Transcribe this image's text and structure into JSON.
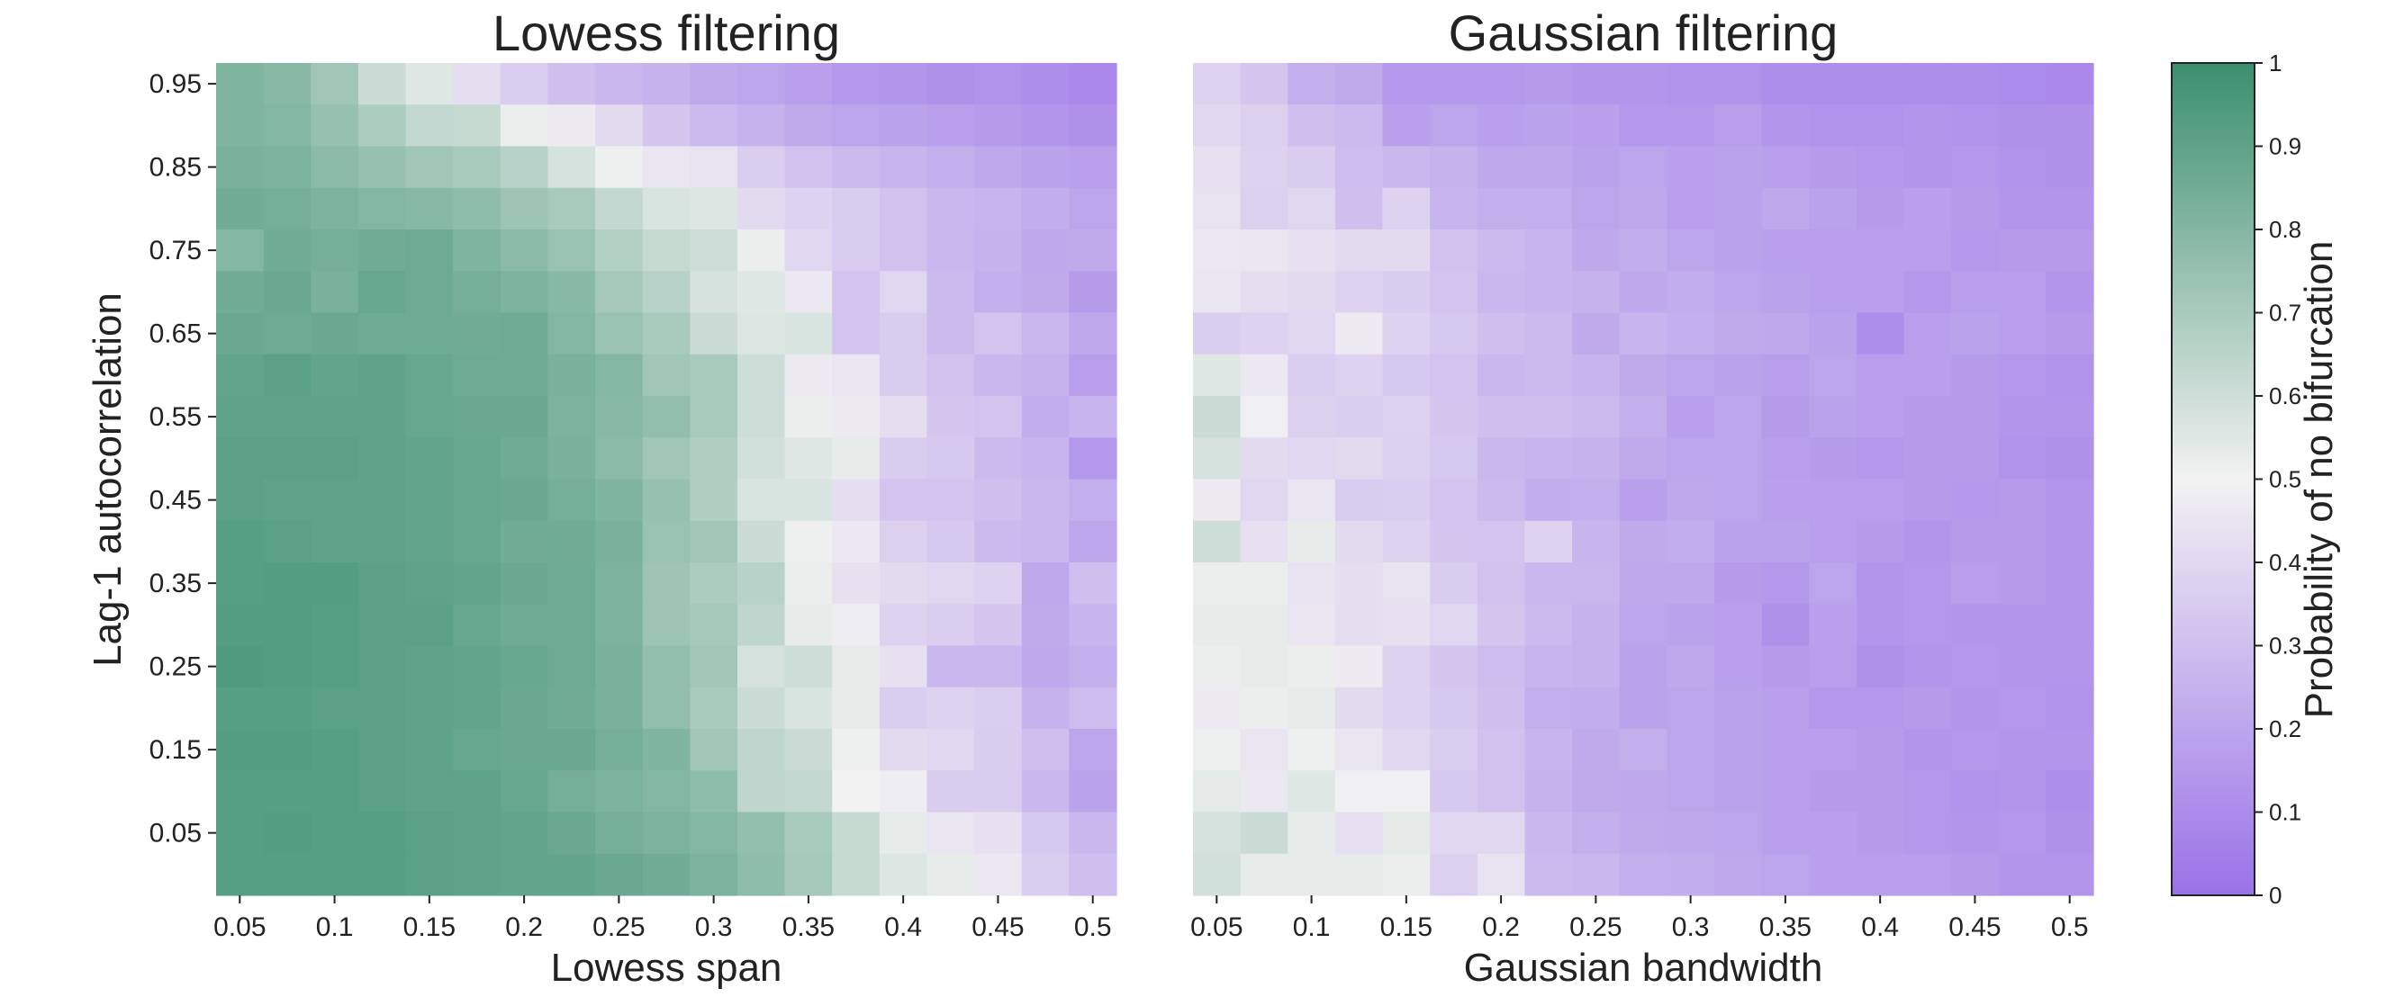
{
  "chart_data": [
    {
      "type": "heatmap",
      "title": "Lowess filtering",
      "xlabel": "Lowess span",
      "ylabel": "Lag-1 autocorrelation",
      "x_ticks": [
        "0.05",
        "0.1",
        "0.15",
        "0.2",
        "0.25",
        "0.3",
        "0.35",
        "0.4",
        "0.45",
        "0.5"
      ],
      "y_ticks": [
        "0.95",
        "0.85",
        "0.75",
        "0.65",
        "0.55",
        "0.45",
        "0.35",
        "0.25",
        "0.15",
        "0.05"
      ],
      "x_values": [
        0.05,
        0.075,
        0.1,
        0.125,
        0.15,
        0.175,
        0.2,
        0.225,
        0.25,
        0.275,
        0.3,
        0.325,
        0.35,
        0.375,
        0.4,
        0.425,
        0.45,
        0.475,
        0.5
      ],
      "y_values": [
        0.95,
        0.9,
        0.85,
        0.8,
        0.75,
        0.7,
        0.65,
        0.6,
        0.55,
        0.5,
        0.45,
        0.4,
        0.35,
        0.3,
        0.25,
        0.2,
        0.15,
        0.1,
        0.05,
        0.0
      ],
      "values": [
        [
          0.81,
          0.79,
          0.72,
          0.61,
          0.55,
          0.42,
          0.36,
          0.3,
          0.27,
          0.25,
          0.22,
          0.2,
          0.17,
          0.15,
          0.14,
          0.12,
          0.13,
          0.11,
          0.09
        ],
        [
          0.81,
          0.8,
          0.75,
          0.69,
          0.63,
          0.62,
          0.52,
          0.47,
          0.41,
          0.33,
          0.28,
          0.25,
          0.22,
          0.2,
          0.19,
          0.18,
          0.16,
          0.14,
          0.12
        ],
        [
          0.83,
          0.82,
          0.78,
          0.75,
          0.72,
          0.7,
          0.66,
          0.58,
          0.51,
          0.45,
          0.44,
          0.36,
          0.31,
          0.28,
          0.26,
          0.24,
          0.21,
          0.19,
          0.17
        ],
        [
          0.85,
          0.84,
          0.82,
          0.8,
          0.79,
          0.77,
          0.73,
          0.7,
          0.63,
          0.57,
          0.56,
          0.41,
          0.38,
          0.35,
          0.31,
          0.27,
          0.26,
          0.23,
          0.2
        ],
        [
          0.8,
          0.85,
          0.84,
          0.85,
          0.86,
          0.81,
          0.78,
          0.74,
          0.67,
          0.62,
          0.6,
          0.52,
          0.4,
          0.35,
          0.31,
          0.27,
          0.25,
          0.21,
          0.22
        ],
        [
          0.85,
          0.87,
          0.83,
          0.88,
          0.86,
          0.84,
          0.82,
          0.79,
          0.71,
          0.66,
          0.58,
          0.55,
          0.46,
          0.32,
          0.39,
          0.28,
          0.24,
          0.22,
          0.16
        ],
        [
          0.87,
          0.86,
          0.87,
          0.86,
          0.86,
          0.85,
          0.86,
          0.8,
          0.74,
          0.7,
          0.61,
          0.56,
          0.57,
          0.32,
          0.35,
          0.28,
          0.32,
          0.27,
          0.21
        ],
        [
          0.89,
          0.91,
          0.89,
          0.9,
          0.88,
          0.86,
          0.86,
          0.83,
          0.8,
          0.72,
          0.7,
          0.6,
          0.47,
          0.45,
          0.35,
          0.31,
          0.27,
          0.25,
          0.17
        ],
        [
          0.9,
          0.9,
          0.9,
          0.9,
          0.88,
          0.87,
          0.87,
          0.82,
          0.79,
          0.76,
          0.7,
          0.6,
          0.52,
          0.47,
          0.42,
          0.33,
          0.32,
          0.23,
          0.26
        ],
        [
          0.91,
          0.91,
          0.91,
          0.9,
          0.89,
          0.88,
          0.86,
          0.83,
          0.78,
          0.72,
          0.68,
          0.59,
          0.55,
          0.53,
          0.35,
          0.34,
          0.28,
          0.26,
          0.15
        ],
        [
          0.91,
          0.9,
          0.9,
          0.9,
          0.89,
          0.88,
          0.87,
          0.84,
          0.81,
          0.75,
          0.68,
          0.57,
          0.57,
          0.42,
          0.32,
          0.32,
          0.3,
          0.27,
          0.24
        ],
        [
          0.92,
          0.91,
          0.9,
          0.9,
          0.89,
          0.88,
          0.85,
          0.85,
          0.83,
          0.74,
          0.72,
          0.61,
          0.51,
          0.46,
          0.37,
          0.34,
          0.28,
          0.27,
          0.2
        ],
        [
          0.92,
          0.93,
          0.93,
          0.91,
          0.9,
          0.89,
          0.87,
          0.86,
          0.82,
          0.73,
          0.69,
          0.66,
          0.52,
          0.43,
          0.41,
          0.39,
          0.38,
          0.21,
          0.3
        ],
        [
          0.93,
          0.93,
          0.92,
          0.91,
          0.91,
          0.88,
          0.86,
          0.86,
          0.82,
          0.73,
          0.71,
          0.64,
          0.53,
          0.48,
          0.38,
          0.36,
          0.33,
          0.22,
          0.26
        ],
        [
          0.94,
          0.93,
          0.92,
          0.91,
          0.9,
          0.89,
          0.88,
          0.86,
          0.83,
          0.76,
          0.72,
          0.58,
          0.6,
          0.53,
          0.43,
          0.27,
          0.27,
          0.21,
          0.24
        ],
        [
          0.92,
          0.92,
          0.91,
          0.91,
          0.9,
          0.89,
          0.87,
          0.85,
          0.83,
          0.76,
          0.7,
          0.61,
          0.57,
          0.53,
          0.36,
          0.38,
          0.36,
          0.25,
          0.29
        ],
        [
          0.93,
          0.93,
          0.92,
          0.91,
          0.9,
          0.88,
          0.87,
          0.87,
          0.84,
          0.81,
          0.72,
          0.64,
          0.61,
          0.51,
          0.41,
          0.4,
          0.35,
          0.3,
          0.2
        ],
        [
          0.92,
          0.92,
          0.92,
          0.91,
          0.9,
          0.9,
          0.88,
          0.84,
          0.82,
          0.8,
          0.77,
          0.64,
          0.63,
          0.5,
          0.48,
          0.35,
          0.35,
          0.27,
          0.19
        ],
        [
          0.92,
          0.93,
          0.92,
          0.92,
          0.91,
          0.9,
          0.89,
          0.87,
          0.84,
          0.82,
          0.8,
          0.76,
          0.7,
          0.62,
          0.53,
          0.45,
          0.43,
          0.34,
          0.27
        ],
        [
          0.92,
          0.92,
          0.92,
          0.92,
          0.91,
          0.9,
          0.89,
          0.89,
          0.87,
          0.85,
          0.82,
          0.77,
          0.71,
          0.62,
          0.56,
          0.53,
          0.46,
          0.36,
          0.3
        ]
      ],
      "vmin": 0,
      "vmax": 1
    },
    {
      "type": "heatmap",
      "title": "Gaussian filtering",
      "xlabel": "Gaussian bandwidth",
      "x_ticks": [
        "0.05",
        "0.1",
        "0.15",
        "0.2",
        "0.25",
        "0.3",
        "0.35",
        "0.4",
        "0.45",
        "0.5"
      ],
      "y_ticks": [],
      "x_values": [
        0.05,
        0.075,
        0.1,
        0.125,
        0.15,
        0.175,
        0.2,
        0.225,
        0.25,
        0.275,
        0.3,
        0.325,
        0.35,
        0.375,
        0.4,
        0.425,
        0.45,
        0.475,
        0.5
      ],
      "y_values": [
        0.95,
        0.9,
        0.85,
        0.8,
        0.75,
        0.7,
        0.65,
        0.6,
        0.55,
        0.5,
        0.45,
        0.4,
        0.35,
        0.3,
        0.25,
        0.2,
        0.15,
        0.1,
        0.05,
        0.0
      ],
      "values": [
        [
          0.38,
          0.33,
          0.24,
          0.22,
          0.15,
          0.15,
          0.15,
          0.16,
          0.14,
          0.14,
          0.13,
          0.13,
          0.11,
          0.11,
          0.11,
          0.11,
          0.11,
          0.1,
          0.09
        ],
        [
          0.4,
          0.37,
          0.3,
          0.28,
          0.18,
          0.2,
          0.18,
          0.19,
          0.18,
          0.15,
          0.15,
          0.17,
          0.14,
          0.13,
          0.13,
          0.14,
          0.13,
          0.12,
          0.12
        ],
        [
          0.43,
          0.38,
          0.35,
          0.29,
          0.27,
          0.25,
          0.21,
          0.21,
          0.19,
          0.2,
          0.18,
          0.19,
          0.17,
          0.16,
          0.15,
          0.14,
          0.15,
          0.13,
          0.12
        ],
        [
          0.44,
          0.37,
          0.39,
          0.3,
          0.38,
          0.26,
          0.24,
          0.24,
          0.2,
          0.21,
          0.18,
          0.19,
          0.21,
          0.19,
          0.16,
          0.18,
          0.16,
          0.14,
          0.14
        ],
        [
          0.46,
          0.45,
          0.43,
          0.41,
          0.41,
          0.31,
          0.28,
          0.26,
          0.21,
          0.23,
          0.2,
          0.19,
          0.18,
          0.17,
          0.17,
          0.17,
          0.15,
          0.16,
          0.16
        ],
        [
          0.45,
          0.42,
          0.41,
          0.38,
          0.35,
          0.32,
          0.27,
          0.26,
          0.25,
          0.21,
          0.23,
          0.2,
          0.19,
          0.17,
          0.17,
          0.15,
          0.17,
          0.17,
          0.14
        ],
        [
          0.36,
          0.38,
          0.39,
          0.47,
          0.38,
          0.34,
          0.3,
          0.28,
          0.22,
          0.26,
          0.24,
          0.22,
          0.21,
          0.19,
          0.11,
          0.17,
          0.19,
          0.17,
          0.16
        ],
        [
          0.55,
          0.46,
          0.36,
          0.38,
          0.34,
          0.32,
          0.27,
          0.28,
          0.26,
          0.22,
          0.2,
          0.19,
          0.17,
          0.2,
          0.17,
          0.18,
          0.16,
          0.15,
          0.13
        ],
        [
          0.61,
          0.49,
          0.37,
          0.36,
          0.38,
          0.33,
          0.3,
          0.3,
          0.28,
          0.24,
          0.18,
          0.2,
          0.16,
          0.19,
          0.18,
          0.16,
          0.16,
          0.14,
          0.14
        ],
        [
          0.58,
          0.41,
          0.4,
          0.41,
          0.37,
          0.34,
          0.27,
          0.26,
          0.25,
          0.22,
          0.2,
          0.2,
          0.17,
          0.16,
          0.15,
          0.16,
          0.16,
          0.13,
          0.12
        ],
        [
          0.47,
          0.39,
          0.45,
          0.35,
          0.36,
          0.32,
          0.28,
          0.23,
          0.24,
          0.18,
          0.21,
          0.2,
          0.18,
          0.17,
          0.17,
          0.16,
          0.15,
          0.16,
          0.14
        ],
        [
          0.6,
          0.43,
          0.53,
          0.41,
          0.38,
          0.33,
          0.32,
          0.38,
          0.26,
          0.22,
          0.23,
          0.19,
          0.19,
          0.17,
          0.16,
          0.14,
          0.16,
          0.16,
          0.14
        ],
        [
          0.52,
          0.52,
          0.44,
          0.42,
          0.44,
          0.35,
          0.31,
          0.27,
          0.27,
          0.21,
          0.21,
          0.16,
          0.15,
          0.2,
          0.14,
          0.15,
          0.17,
          0.16,
          0.14
        ],
        [
          0.53,
          0.53,
          0.45,
          0.42,
          0.43,
          0.39,
          0.33,
          0.28,
          0.25,
          0.2,
          0.19,
          0.18,
          0.12,
          0.18,
          0.14,
          0.15,
          0.14,
          0.14,
          0.14
        ],
        [
          0.52,
          0.53,
          0.52,
          0.47,
          0.38,
          0.33,
          0.29,
          0.26,
          0.25,
          0.19,
          0.21,
          0.18,
          0.16,
          0.17,
          0.12,
          0.14,
          0.15,
          0.14,
          0.14
        ],
        [
          0.47,
          0.52,
          0.53,
          0.41,
          0.38,
          0.34,
          0.3,
          0.24,
          0.23,
          0.19,
          0.2,
          0.19,
          0.17,
          0.15,
          0.15,
          0.16,
          0.14,
          0.15,
          0.13
        ],
        [
          0.51,
          0.45,
          0.51,
          0.45,
          0.4,
          0.36,
          0.31,
          0.26,
          0.22,
          0.24,
          0.2,
          0.19,
          0.18,
          0.17,
          0.16,
          0.14,
          0.15,
          0.14,
          0.14
        ],
        [
          0.54,
          0.46,
          0.55,
          0.49,
          0.49,
          0.34,
          0.31,
          0.25,
          0.22,
          0.21,
          0.2,
          0.19,
          0.18,
          0.16,
          0.16,
          0.15,
          0.13,
          0.14,
          0.11
        ],
        [
          0.58,
          0.61,
          0.53,
          0.43,
          0.54,
          0.4,
          0.4,
          0.27,
          0.24,
          0.22,
          0.21,
          0.2,
          0.17,
          0.18,
          0.16,
          0.15,
          0.14,
          0.15,
          0.12
        ],
        [
          0.59,
          0.53,
          0.53,
          0.53,
          0.52,
          0.37,
          0.44,
          0.28,
          0.27,
          0.24,
          0.23,
          0.21,
          0.2,
          0.18,
          0.17,
          0.17,
          0.16,
          0.14,
          0.14
        ]
      ],
      "vmin": 0,
      "vmax": 1
    }
  ],
  "colorbar": {
    "label": "Probability of no bifurcation",
    "ticks": [
      "1",
      "0.9",
      "0.8",
      "0.7",
      "0.6",
      "0.5",
      "0.4",
      "0.3",
      "0.2",
      "0.1",
      "0"
    ],
    "low_color": "#9a72e8",
    "mid_color": "#f2f2f2",
    "high_color": "#3a8f6e"
  }
}
